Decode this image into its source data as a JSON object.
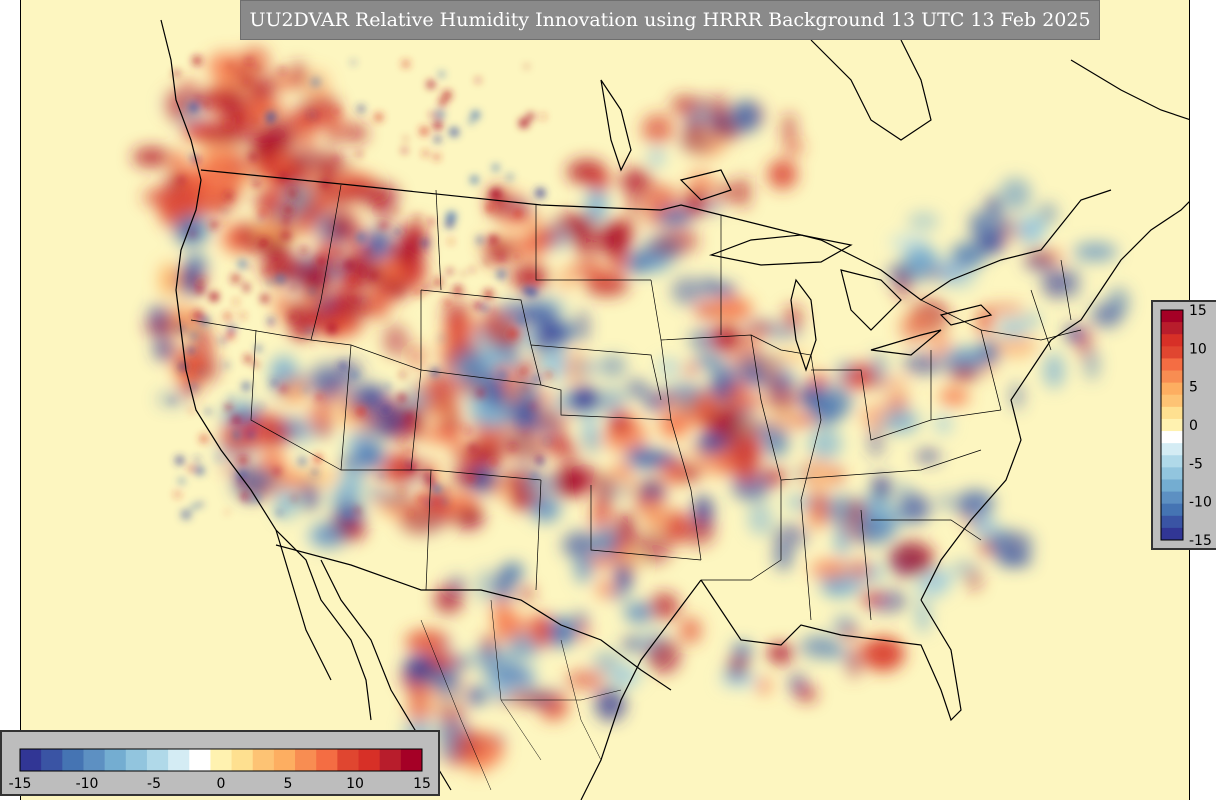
{
  "title": "UU2DVAR Relative Humidity Innovation using HRRR Background 13 UTC 13 Feb 2025",
  "colorbar": {
    "vmin": -15,
    "vmax": 15,
    "ticks": [
      "-15",
      "-10",
      "-5",
      "0",
      "5",
      "10",
      "15"
    ],
    "colors": [
      "#313695",
      "#3a54a4",
      "#4574b3",
      "#5d90c2",
      "#74add1",
      "#92c5de",
      "#b0d9e9",
      "#d4ecf4",
      "#ffffff",
      "#fff2b0",
      "#fee090",
      "#fdc374",
      "#fdae61",
      "#f88d52",
      "#f46d43",
      "#e04630",
      "#d73027",
      "#b81d2c",
      "#a50026"
    ],
    "orientations": [
      "horizontal",
      "vertical"
    ]
  },
  "map": {
    "background_color": "#fdf6c0",
    "coastline_color": "#000000",
    "features": [
      "coastlines",
      "country borders",
      "state and province borders",
      "great lakes"
    ]
  }
}
